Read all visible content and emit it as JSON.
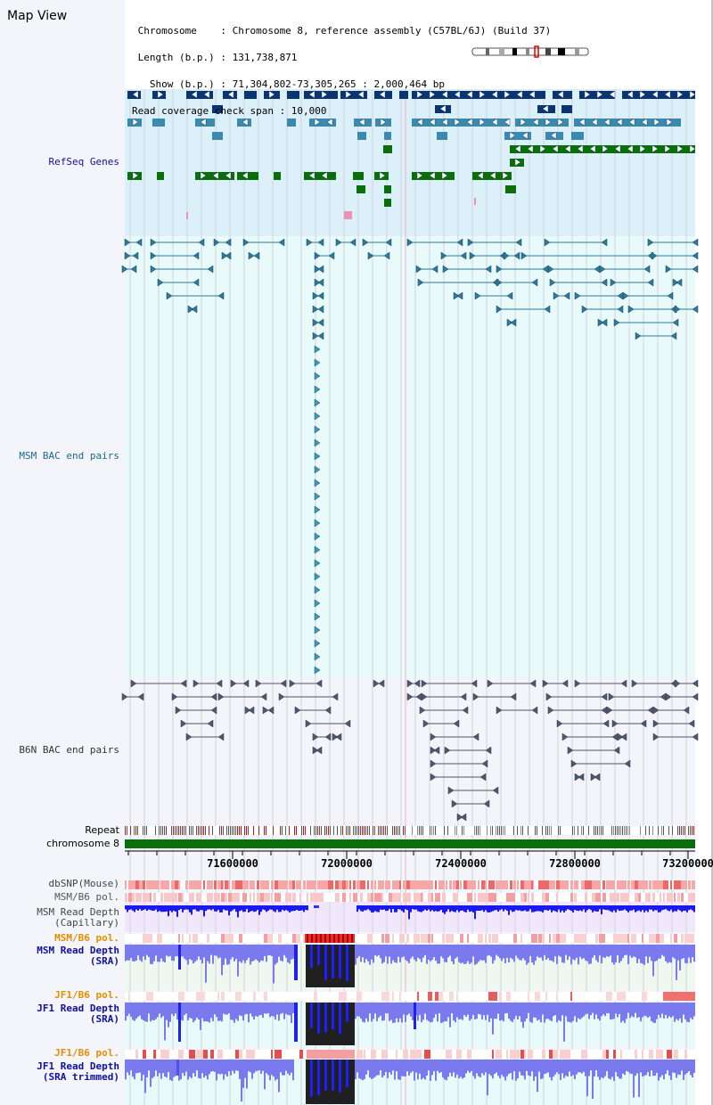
{
  "header": {
    "title": "Map View",
    "info_lines": [
      " Chromosome    : Chromosome 8, reference assembly (C57BL/6J) (Build 37)",
      " Length (b.p.) : 131,738,871",
      "   Show (b.p.) : 71,304,802-73,305,265 : 2,000,464 bp",
      "Read coverage check span : 10,000"
    ]
  },
  "tracks": {
    "refseq": "RefSeq Genes",
    "msm_bac": "MSM BAC end pairs",
    "b6n_bac": "B6N BAC end pairs",
    "repeat": "Repeat",
    "chromosome": "chromosome 8",
    "dbsnp": "dbSNP(Mouse)",
    "msm_b6_pol_1": "MSM/B6 pol.",
    "msm_depth_cap_1": "MSM Read Depth",
    "msm_depth_cap_2": "(Capillary)",
    "msm_b6_pol_2": "MSM/B6 pol.",
    "msm_depth_sra_1": "MSM Read Depth",
    "msm_depth_sra_2": "(SRA)",
    "jf1_b6_pol_1": "JF1/B6 pol.",
    "jf1_depth_sra_1": "JF1 Read Depth",
    "jf1_depth_sra_2": "(SRA)",
    "jf1_b6_pol_2": "JF1/B6 pol.",
    "jf1_depth_trim_1": "JF1 Read Depth",
    "jf1_depth_trim_2": "(SRA trimmed)"
  },
  "axis": {
    "ticks": [
      "71600000",
      "72000000",
      "72400000",
      "72800000",
      "73200000"
    ]
  },
  "colors": {
    "refseq_dark": "#0a3570",
    "refseq_mid": "#3a8ab0",
    "refseq_green": "#0a6e0a",
    "bac_teal": "#2a7a9a",
    "depth_blue": "#1a1aee",
    "depth_light": "#7a7aee",
    "pol_red": "#e02020",
    "label_blue": "#1010a0",
    "label_orange": "#e09000",
    "label_teal": "#1a6a8a"
  }
}
